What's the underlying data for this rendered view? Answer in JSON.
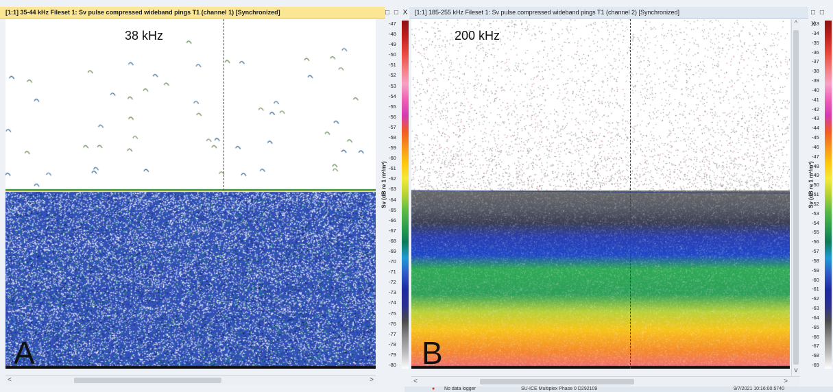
{
  "panes": [
    {
      "title": "[1:1] 35-44 kHz Fileset 1: Sv pulse compressed wideband pings T1 (channel 1) [Synchronized]",
      "window_buttons": "□ □ X",
      "frequency_label": "38 kHz",
      "panel_letter": "A",
      "colorbar_label": "Sv (dB re 1 m¹/m³)",
      "colorbar_ticks": [
        "-47",
        "-48",
        "-49",
        "-50",
        "-51",
        "-52",
        "-53",
        "-54",
        "-55",
        "-56",
        "-57",
        "-58",
        "-59",
        "-60",
        "-61",
        "-62",
        "-63",
        "-64",
        "-65",
        "-66",
        "-67",
        "-68",
        "-69",
        "-70",
        "-71",
        "-72",
        "-73",
        "-74",
        "-75",
        "-76",
        "-77",
        "-78",
        "-79",
        "-80"
      ]
    },
    {
      "title": "[1:1] 185-255 kHz Fileset 1: Sv pulse compressed wideband pings T1 (channel 2) [Synchronized]",
      "window_buttons": "□ □ X",
      "frequency_label": "200 kHz",
      "panel_letter": "B",
      "colorbar_label": "Sv (dB re 1 m¹/m³)",
      "colorbar_ticks": [
        "-33",
        "-34",
        "-35",
        "-36",
        "-37",
        "-38",
        "-39",
        "-40",
        "-41",
        "-42",
        "-43",
        "-44",
        "-45",
        "-46",
        "-47",
        "-48",
        "-49",
        "-50",
        "-51",
        "-52",
        "-53",
        "-54",
        "-55",
        "-56",
        "-57",
        "-58",
        "-59",
        "-60",
        "-61",
        "-62",
        "-63",
        "-64",
        "-65",
        "-66",
        "-67",
        "-68",
        "-69"
      ]
    }
  ],
  "scroll": {
    "left_arrow": "<",
    "right_arrow": ">",
    "up_arrow": "^",
    "down_arrow": "v"
  },
  "status": {
    "no_data_logger": "No data logger",
    "program": "SU-ICE Multiplex Phase 0 D292109",
    "timestamp": "9/7/2021 10:16:00.5740"
  },
  "colors": {
    "active_title": "#fbe694",
    "inactive_title": "#dfe7f1",
    "colorbar_stops": [
      "#8b1010",
      "#c0201e",
      "#e8453a",
      "#f27a7a",
      "#f7a2c4",
      "#ef5fb6",
      "#d43bb0",
      "#f15a24",
      "#f7941d",
      "#fdc70c",
      "#f4e93b",
      "#b5d334",
      "#5dbb46",
      "#2e9f4c",
      "#0d7a58",
      "#1f9bd6",
      "#2f58c7",
      "#1d2aa0",
      "#2b2f8f",
      "#4b4b4b",
      "#8a8a8a",
      "#bdbdbd",
      "#ffffff"
    ]
  }
}
